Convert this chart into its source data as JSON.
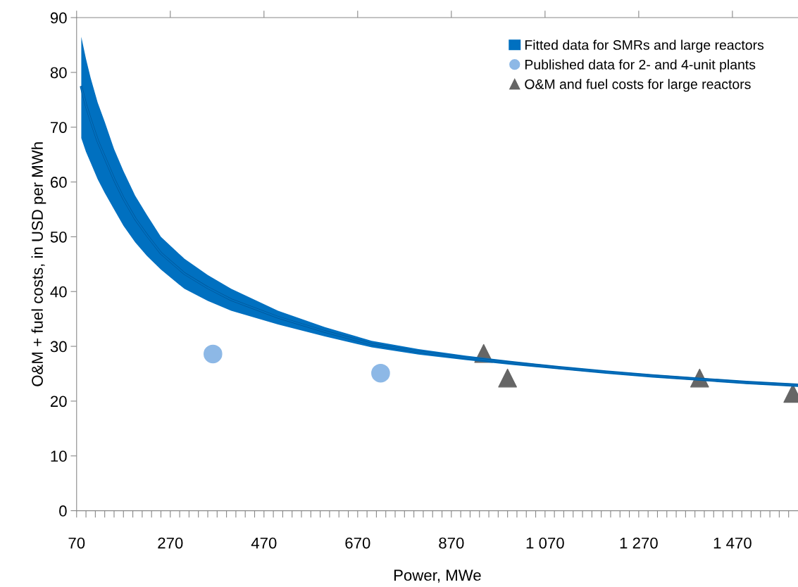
{
  "chart_data": {
    "type": "scatter",
    "xlabel": "Power, MWe",
    "ylabel": "O&M + fuel costs, in USD per MWh",
    "xlim": [
      70,
      1610
    ],
    "ylim": [
      0,
      90
    ],
    "xticks": [
      70,
      270,
      470,
      670,
      870,
      {
        "value": 1070,
        "label": "1 070"
      },
      {
        "value": 1270,
        "label": "1 270"
      },
      {
        "value": 1470,
        "label": "1 470"
      },
      {
        "value": 90,
        "label": null
      },
      {
        "value": 110,
        "label": null
      },
      {
        "value": 130,
        "label": null
      },
      {
        "value": 150,
        "label": null
      },
      {
        "value": 170,
        "label": null
      },
      {
        "value": 190,
        "label": null
      },
      {
        "value": 210,
        "label": null
      },
      {
        "value": 230,
        "label": null
      },
      {
        "value": 250,
        "label": null
      },
      {
        "value": 290,
        "label": null
      },
      {
        "value": 310,
        "label": null
      },
      {
        "value": 330,
        "label": null
      },
      {
        "value": 350,
        "label": null
      },
      {
        "value": 370,
        "label": null
      },
      {
        "value": 390,
        "label": null
      },
      {
        "value": 410,
        "label": null
      },
      {
        "value": 430,
        "label": null
      },
      {
        "value": 450,
        "label": null
      },
      {
        "value": 490,
        "label": null
      },
      {
        "value": 510,
        "label": null
      },
      {
        "value": 530,
        "label": null
      },
      {
        "value": 550,
        "label": null
      },
      {
        "value": 570,
        "label": null
      },
      {
        "value": 590,
        "label": null
      },
      {
        "value": 610,
        "label": null
      },
      {
        "value": 630,
        "label": null
      },
      {
        "value": 650,
        "label": null
      },
      {
        "value": 690,
        "label": null
      },
      {
        "value": 710,
        "label": null
      },
      {
        "value": 730,
        "label": null
      },
      {
        "value": 750,
        "label": null
      },
      {
        "value": 770,
        "label": null
      },
      {
        "value": 790,
        "label": null
      },
      {
        "value": 810,
        "label": null
      },
      {
        "value": 830,
        "label": null
      },
      {
        "value": 850,
        "label": null
      },
      {
        "value": 890,
        "label": null
      },
      {
        "value": 910,
        "label": null
      },
      {
        "value": 930,
        "label": null
      },
      {
        "value": 950,
        "label": null
      },
      {
        "value": 970,
        "label": null
      },
      {
        "value": 990,
        "label": null
      },
      {
        "value": 1010,
        "label": null
      },
      {
        "value": 1030,
        "label": null
      },
      {
        "value": 1050,
        "label": null
      },
      {
        "value": 1090,
        "label": null
      },
      {
        "value": 1110,
        "label": null
      },
      {
        "value": 1130,
        "label": null
      },
      {
        "value": 1150,
        "label": null
      },
      {
        "value": 1170,
        "label": null
      },
      {
        "value": 1190,
        "label": null
      },
      {
        "value": 1210,
        "label": null
      },
      {
        "value": 1230,
        "label": null
      },
      {
        "value": 1250,
        "label": null
      },
      {
        "value": 1290,
        "label": null
      },
      {
        "value": 1310,
        "label": null
      },
      {
        "value": 1330,
        "label": null
      },
      {
        "value": 1350,
        "label": null
      },
      {
        "value": 1370,
        "label": null
      },
      {
        "value": 1390,
        "label": null
      },
      {
        "value": 1410,
        "label": null
      },
      {
        "value": 1430,
        "label": null
      },
      {
        "value": 1450,
        "label": null
      },
      {
        "value": 1490,
        "label": null
      },
      {
        "value": 1510,
        "label": null
      },
      {
        "value": 1530,
        "label": null
      },
      {
        "value": 1550,
        "label": null
      },
      {
        "value": 1570,
        "label": null
      },
      {
        "value": 1590,
        "label": null
      }
    ],
    "yticks": [
      0,
      10,
      20,
      30,
      40,
      50,
      60,
      70,
      80,
      90
    ],
    "grid": false,
    "legend": "top right",
    "series": [
      {
        "name": "Fitted data for SMRs and large reactors",
        "type": "line",
        "color": "#0070c0",
        "x": [
          80,
          90,
          100,
          115,
          130,
          150,
          170,
          195,
          220,
          250,
          300,
          350,
          400,
          500,
          600,
          700,
          800,
          900,
          1000,
          1100,
          1200,
          1300,
          1400,
          1500,
          1610
        ],
        "values": [
          77.3,
          74,
          71.3,
          67.5,
          64.5,
          60.5,
          57,
          53.3,
          50.3,
          47,
          43.3,
          40.7,
          38.5,
          35.3,
          32.7,
          30.4,
          29,
          27.9,
          27,
          26.1,
          25.3,
          24.6,
          24,
          23.4,
          22.9
        ],
        "upper": [
          86.5,
          82.5,
          79,
          74.5,
          71,
          66,
          62,
          57.5,
          54,
          50,
          46,
          43,
          40.5,
          36.5,
          33.5,
          31,
          29.5,
          28.3,
          27.3,
          26.4,
          25.6,
          24.9,
          24.3,
          23.7,
          23.2
        ],
        "lower": [
          68,
          65.5,
          63.5,
          60.5,
          58,
          55,
          52,
          49,
          46.5,
          44,
          40.5,
          38.3,
          36.5,
          34,
          31.8,
          29.8,
          28.5,
          27.5,
          26.6,
          25.8,
          25,
          24.3,
          23.7,
          23.1,
          22.6
        ]
      },
      {
        "name": "Published data for 2- and 4-unit plants",
        "type": "scatter",
        "marker": "circle",
        "color": "#8db8e6",
        "x": [
          361,
          719
        ],
        "values": [
          28.6,
          25.1
        ]
      },
      {
        "name": "O&M and fuel costs for large reactors",
        "type": "scatter",
        "marker": "triangle",
        "color": "#666666",
        "x": [
          939,
          990,
          1400,
          1599
        ],
        "values": [
          28.7,
          24.2,
          24.2,
          21.4
        ]
      }
    ]
  }
}
